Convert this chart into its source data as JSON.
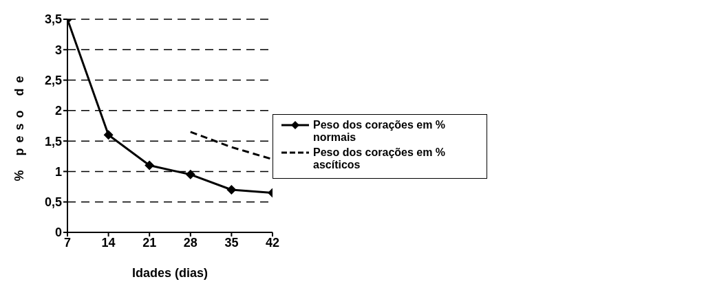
{
  "chart_data": {
    "type": "line",
    "xlabel": "Idades (dias)",
    "ylabel": "% peso de",
    "x": [
      7,
      14,
      21,
      28,
      35,
      42
    ],
    "series": [
      {
        "name": "Peso dos corações em % normais",
        "color": "#000000",
        "values": [
          3.5,
          1.6,
          1.1,
          0.95,
          0.7,
          0.65
        ],
        "marker": "diamond",
        "line_style": "solid"
      },
      {
        "name": "Peso dos corações em % ascíticos",
        "color": "#000000",
        "values": [
          null,
          null,
          null,
          1.65,
          1.4,
          1.2
        ],
        "marker": "none",
        "line_style": "dashed"
      }
    ],
    "xlim": [
      7,
      42
    ],
    "xticks": [
      7,
      14,
      21,
      28,
      35,
      42
    ],
    "ylim": [
      0,
      3.5
    ],
    "yticks": [
      0,
      {
        "value": 0.5,
        "label": "0,5"
      },
      1,
      {
        "value": 1.5,
        "label": "1,5"
      },
      2,
      {
        "value": 2.5,
        "label": "2,5"
      },
      3,
      {
        "value": 3.5,
        "label": "3,5"
      }
    ],
    "grid": "y",
    "legend": "right"
  }
}
